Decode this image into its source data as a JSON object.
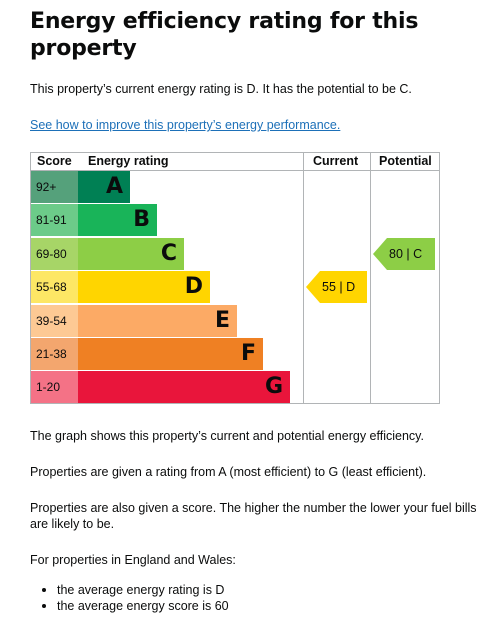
{
  "heading": "Energy efficiency rating for this property",
  "lede": "This property’s current energy rating is D. It has the potential to be C.",
  "link": "See how to improve this property’s energy performance.",
  "chart_data": {
    "type": "table",
    "headers": {
      "score": "Score",
      "rating": "Energy rating",
      "current": "Current",
      "potential": "Potential"
    },
    "bands": [
      {
        "score": "92+",
        "letter": "A",
        "score_color": "#55a17b",
        "color": "#008054"
      },
      {
        "score": "81-91",
        "letter": "B",
        "score_color": "#6ccb89",
        "color": "#19b459"
      },
      {
        "score": "69-80",
        "letter": "C",
        "score_color": "#a7d567",
        "color": "#8dce46"
      },
      {
        "score": "55-68",
        "letter": "D",
        "score_color": "#fde765",
        "color": "#ffd500"
      },
      {
        "score": "39-54",
        "letter": "E",
        "score_color": "#fdc994",
        "color": "#fcaa65"
      },
      {
        "score": "21-38",
        "letter": "F",
        "score_color": "#f3a66e",
        "color": "#ef8023"
      },
      {
        "score": "1-20",
        "letter": "G",
        "score_color": "#f47286",
        "color": "#e9153b"
      }
    ],
    "current": {
      "score": 55,
      "letter": "D",
      "label": "55 |  D",
      "color": "#ffd500"
    },
    "potential": {
      "score": 80,
      "letter": "C",
      "label": "80 |  C",
      "color": "#8dce46"
    }
  },
  "paragraphs": [
    "The graph shows this property’s current and potential energy efficiency.",
    "Properties are given a rating from A (most efficient) to G (least efficient).",
    "Properties are also given a score. The higher the number the lower your fuel bills are likely to be.",
    "For properties in England and Wales:"
  ],
  "bullets": [
    "the average energy rating is D",
    "the average energy score is 60"
  ]
}
